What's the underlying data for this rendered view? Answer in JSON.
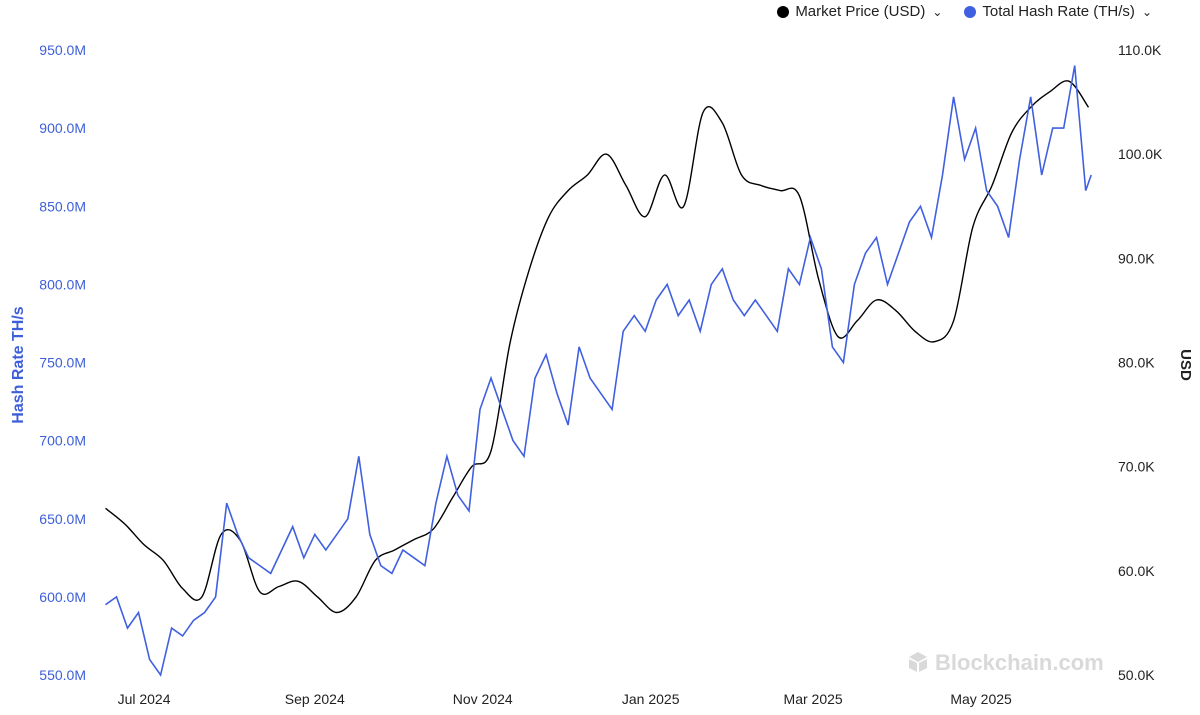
{
  "legend": {
    "price_label": "Market Price (USD)",
    "hash_label": "Total Hash Rate (TH/s)",
    "price_chevron": "chevron-down-icon",
    "hash_chevron": "chevron-down-icon"
  },
  "watermark": "Blockchain.com",
  "chart_data": {
    "type": "line",
    "left_axis": {
      "label": "Hash Rate TH/s",
      "ticks": [
        "550.0M",
        "600.0M",
        "650.0M",
        "700.0M",
        "750.0M",
        "800.0M",
        "850.0M",
        "900.0M",
        "950.0M"
      ],
      "range": [
        550000000,
        950000000
      ]
    },
    "right_axis": {
      "label": "USD",
      "ticks": [
        "50.0K",
        "60.0K",
        "70.0K",
        "80.0K",
        "90.0K",
        "100.0K",
        "110.0K"
      ],
      "range": [
        50000,
        110000
      ]
    },
    "x_axis": {
      "range": [
        "2024-06-15",
        "2025-06-15"
      ],
      "ticks": [
        {
          "date": "2024-07-01",
          "label": "Jul 2024"
        },
        {
          "date": "2024-09-01",
          "label": "Sep 2024"
        },
        {
          "date": "2024-11-01",
          "label": "Nov 2024"
        },
        {
          "date": "2025-01-01",
          "label": "Jan 2025"
        },
        {
          "date": "2025-03-01",
          "label": "Mar 2025"
        },
        {
          "date": "2025-05-01",
          "label": "May 2025"
        }
      ]
    },
    "grid": false,
    "legend_position": "top-right",
    "series": [
      {
        "name": "Market Price (USD)",
        "axis": "right",
        "color": "#000000",
        "x": [
          "2024-06-17",
          "2024-06-24",
          "2024-07-01",
          "2024-07-08",
          "2024-07-15",
          "2024-07-22",
          "2024-07-29",
          "2024-08-05",
          "2024-08-12",
          "2024-08-19",
          "2024-08-26",
          "2024-09-02",
          "2024-09-09",
          "2024-09-16",
          "2024-09-23",
          "2024-09-30",
          "2024-10-07",
          "2024-10-14",
          "2024-10-21",
          "2024-10-28",
          "2024-11-04",
          "2024-11-11",
          "2024-11-18",
          "2024-11-25",
          "2024-12-02",
          "2024-12-09",
          "2024-12-16",
          "2024-12-23",
          "2024-12-30",
          "2025-01-06",
          "2025-01-13",
          "2025-01-20",
          "2025-01-27",
          "2025-02-03",
          "2025-02-10",
          "2025-02-17",
          "2025-02-24",
          "2025-03-03",
          "2025-03-10",
          "2025-03-17",
          "2025-03-24",
          "2025-03-31",
          "2025-04-07",
          "2025-04-14",
          "2025-04-21",
          "2025-04-28",
          "2025-05-05",
          "2025-05-12",
          "2025-05-19",
          "2025-05-26",
          "2025-06-02",
          "2025-06-09"
        ],
        "y": [
          66000,
          64500,
          62500,
          61000,
          58300,
          57500,
          63500,
          62900,
          58000,
          58500,
          59000,
          57500,
          56000,
          57500,
          61000,
          62000,
          63000,
          64000,
          67000,
          70000,
          71500,
          82000,
          89000,
          94000,
          96500,
          98000,
          100000,
          97000,
          94000,
          98000,
          95000,
          104000,
          103000,
          98000,
          97000,
          96500,
          96000,
          88000,
          82500,
          84000,
          86000,
          85000,
          83000,
          82000,
          84000,
          93000,
          97000,
          102000,
          104500,
          106000,
          107000,
          104500
        ],
        "values_note_in_title_only": ""
      },
      {
        "name": "Total Hash Rate (TH/s)",
        "axis": "left",
        "color": "#4060e0",
        "x": [
          "2024-06-17",
          "2024-06-21",
          "2024-06-25",
          "2024-06-29",
          "2024-07-03",
          "2024-07-07",
          "2024-07-11",
          "2024-07-15",
          "2024-07-19",
          "2024-07-23",
          "2024-07-27",
          "2024-07-31",
          "2024-08-04",
          "2024-08-08",
          "2024-08-12",
          "2024-08-16",
          "2024-08-20",
          "2024-08-24",
          "2024-08-28",
          "2024-09-01",
          "2024-09-05",
          "2024-09-09",
          "2024-09-13",
          "2024-09-17",
          "2024-09-21",
          "2024-09-25",
          "2024-09-29",
          "2024-10-03",
          "2024-10-07",
          "2024-10-11",
          "2024-10-15",
          "2024-10-19",
          "2024-10-23",
          "2024-10-27",
          "2024-10-31",
          "2024-11-04",
          "2024-11-08",
          "2024-11-12",
          "2024-11-16",
          "2024-11-20",
          "2024-11-24",
          "2024-11-28",
          "2024-12-02",
          "2024-12-06",
          "2024-12-10",
          "2024-12-14",
          "2024-12-18",
          "2024-12-22",
          "2024-12-26",
          "2024-12-30",
          "2025-01-03",
          "2025-01-07",
          "2025-01-11",
          "2025-01-15",
          "2025-01-19",
          "2025-01-23",
          "2025-01-27",
          "2025-01-31",
          "2025-02-04",
          "2025-02-08",
          "2025-02-12",
          "2025-02-16",
          "2025-02-20",
          "2025-02-24",
          "2025-02-28",
          "2025-03-04",
          "2025-03-08",
          "2025-03-12",
          "2025-03-16",
          "2025-03-20",
          "2025-03-24",
          "2025-03-28",
          "2025-04-01",
          "2025-04-05",
          "2025-04-09",
          "2025-04-13",
          "2025-04-17",
          "2025-04-21",
          "2025-04-25",
          "2025-04-29",
          "2025-05-03",
          "2025-05-07",
          "2025-05-11",
          "2025-05-15",
          "2025-05-19",
          "2025-05-23",
          "2025-05-27",
          "2025-05-31",
          "2025-06-04",
          "2025-06-08",
          "2025-06-10"
        ],
        "y": [
          595000000,
          600000000,
          580000000,
          590000000,
          560000000,
          550000000,
          580000000,
          575000000,
          585000000,
          590000000,
          600000000,
          660000000,
          640000000,
          625000000,
          620000000,
          615000000,
          630000000,
          645000000,
          625000000,
          640000000,
          630000000,
          640000000,
          650000000,
          690000000,
          640000000,
          620000000,
          615000000,
          630000000,
          625000000,
          620000000,
          660000000,
          690000000,
          665000000,
          655000000,
          720000000,
          740000000,
          720000000,
          700000000,
          690000000,
          740000000,
          755000000,
          730000000,
          710000000,
          760000000,
          740000000,
          730000000,
          720000000,
          770000000,
          780000000,
          770000000,
          790000000,
          800000000,
          780000000,
          790000000,
          770000000,
          800000000,
          810000000,
          790000000,
          780000000,
          790000000,
          780000000,
          770000000,
          810000000,
          800000000,
          830000000,
          810000000,
          760000000,
          750000000,
          800000000,
          820000000,
          830000000,
          800000000,
          820000000,
          840000000,
          850000000,
          830000000,
          870000000,
          920000000,
          880000000,
          900000000,
          860000000,
          850000000,
          830000000,
          880000000,
          920000000,
          870000000,
          900000000,
          900000000,
          940000000,
          860000000,
          870000000
        ]
      }
    ]
  }
}
